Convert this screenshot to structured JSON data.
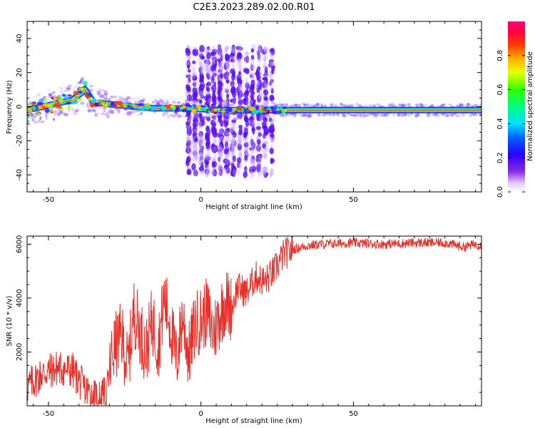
{
  "title": "C2E3.2023.289.02.00.R01",
  "colors": {
    "axis": "#000000",
    "snr_line": "#e8302a"
  },
  "chart_data": [
    {
      "type": "heatmap",
      "xlabel": "Height of straight line (km)",
      "ylabel": "Frequency (Hz)",
      "xlim": [
        -57,
        92
      ],
      "ylim": [
        -50,
        50
      ],
      "xticks": [
        -50,
        0,
        50
      ],
      "yticks": [
        -40,
        -20,
        0,
        20,
        40
      ],
      "colorbar": {
        "label": "Normalized spectral amplitude",
        "ticks": [
          "0.0",
          "0.2",
          "0.4",
          "0.6",
          "0.8"
        ],
        "range": [
          0,
          1
        ],
        "colormap": "rainbow (white-violet-blue-cyan-green-yellow-orange-red-magenta)"
      },
      "ridge_x": [
        -57,
        -52,
        -47,
        -42,
        -38,
        -35,
        -32,
        -28,
        -22,
        -15,
        -8,
        -3,
        5,
        15,
        25,
        40,
        60,
        80,
        92
      ],
      "ridge_freq": [
        -2,
        0,
        2,
        4,
        10,
        2,
        2,
        1,
        0,
        -1,
        -1,
        -1,
        -2,
        -2,
        -2,
        -2,
        -2,
        -2,
        -2
      ],
      "scatter_region_x": [
        -5,
        24
      ],
      "scatter_region_freq": [
        -40,
        35
      ]
    },
    {
      "type": "line",
      "xlabel": "Height of straight line (km)",
      "ylabel": "SNR (10 * v/v)",
      "xlim": [
        -57,
        92
      ],
      "ylim": [
        0,
        6300
      ],
      "xticks": [
        -50,
        0,
        50
      ],
      "yticks": [
        2000,
        4000,
        6000
      ],
      "series": [
        {
          "x": [
            -57,
            -52,
            -47,
            -42,
            -38,
            -34,
            -31,
            -29,
            -26,
            -24,
            -22,
            -20,
            -18,
            -16,
            -14,
            -12,
            -10,
            -8,
            -6,
            -4,
            -2,
            0,
            2,
            4,
            6,
            8,
            10,
            12,
            15,
            18,
            21,
            24,
            27,
            30,
            35,
            40,
            50,
            60,
            70,
            80,
            86,
            90,
            92
          ],
          "y": [
            700,
            1200,
            1400,
            1300,
            600,
            300,
            400,
            2000,
            2600,
            1400,
            3500,
            2800,
            2000,
            3200,
            2200,
            4000,
            3000,
            1600,
            3400,
            1800,
            3000,
            3200,
            3500,
            2700,
            3300,
            3900,
            3600,
            4400,
            4200,
            4800,
            4600,
            5000,
            5600,
            5800,
            5950,
            6000,
            6050,
            6000,
            6050,
            6050,
            5900,
            6000,
            5950
          ]
        }
      ]
    }
  ]
}
